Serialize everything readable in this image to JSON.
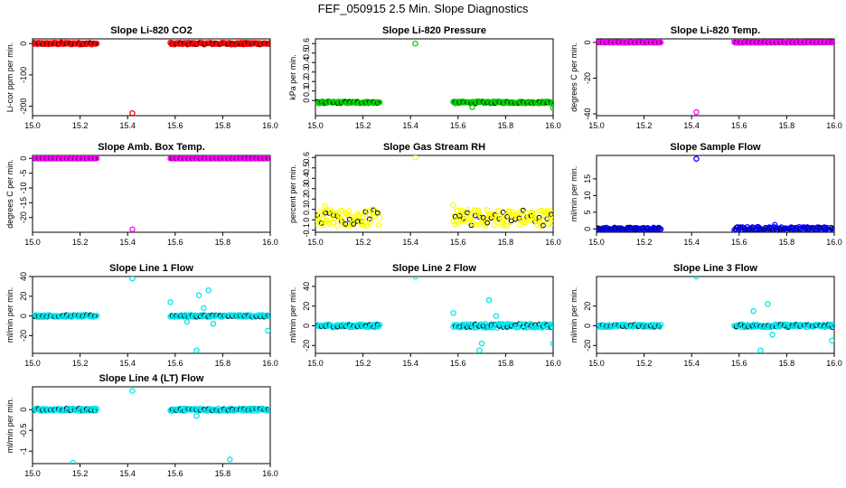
{
  "main_title": "FEF_050915  2.5 Min. Slope Diagnostics",
  "chart_data": [
    {
      "type": "scatter",
      "title": "Slope Li-820 CO2",
      "ylabel": "Li-cor ppm per min.",
      "xlim": [
        15.0,
        16.0
      ],
      "ylim": [
        -230,
        15
      ],
      "xticks": [
        "15.0",
        "15.2",
        "15.4",
        "15.6",
        "15.8",
        "16.0"
      ],
      "yticks": [
        0,
        -100,
        -200
      ],
      "color": "#ff0000",
      "series": [
        {
          "name": "seg1",
          "x_range": [
            15.0,
            15.27
          ],
          "base": 0,
          "spread": 3
        },
        {
          "name": "seg2",
          "x_range": [
            15.58,
            16.0
          ],
          "base": 0,
          "spread": 3
        }
      ],
      "outliers": [
        [
          15.42,
          -222
        ],
        [
          15.58,
          3
        ],
        [
          15.12,
          4
        ]
      ]
    },
    {
      "type": "scatter",
      "title": "Slope Li-820 Pressure",
      "ylabel": "kPa per min.",
      "xlim": [
        15.0,
        16.0
      ],
      "ylim": [
        -0.16,
        0.65
      ],
      "xticks": [
        "15.0",
        "15.2",
        "15.4",
        "15.6",
        "15.8",
        "16.0"
      ],
      "yticks": [
        0.0,
        0.1,
        0.2,
        0.3,
        0.4,
        0.5,
        0.6
      ],
      "color": "#00cc00",
      "series": [
        {
          "name": "seg1",
          "x_range": [
            15.0,
            15.27
          ],
          "base": -0.02,
          "spread": 0.01
        },
        {
          "name": "seg2",
          "x_range": [
            15.58,
            16.0
          ],
          "base": -0.02,
          "spread": 0.01
        }
      ],
      "outliers": [
        [
          15.42,
          0.6
        ],
        [
          15.66,
          -0.07
        ],
        [
          16.0,
          -0.08
        ]
      ]
    },
    {
      "type": "scatter",
      "title": "Slope Li-820 Temp.",
      "ylabel": "degrees C per min.",
      "xlim": [
        15.0,
        16.0
      ],
      "ylim": [
        -41,
        2
      ],
      "xticks": [
        "15.0",
        "15.2",
        "15.4",
        "15.6",
        "15.8",
        "16.0"
      ],
      "yticks": [
        0,
        -20,
        -40
      ],
      "color": "#ff00ff",
      "series": [
        {
          "name": "seg1",
          "x_range": [
            15.0,
            15.27
          ],
          "base": 0,
          "spread": 0.1
        },
        {
          "name": "seg2",
          "x_range": [
            15.58,
            16.0
          ],
          "base": 0,
          "spread": 0.1
        }
      ],
      "outliers": [
        [
          15.42,
          -39
        ],
        [
          15.58,
          1.5
        ]
      ]
    },
    {
      "type": "scatter",
      "title": "Slope Amb. Box Temp.",
      "ylabel": "degrees C per min.",
      "xlim": [
        15.0,
        16.0
      ],
      "ylim": [
        -25,
        1
      ],
      "xticks": [
        "15.0",
        "15.2",
        "15.4",
        "15.6",
        "15.8",
        "16.0"
      ],
      "yticks": [
        0,
        -5,
        -10,
        -15,
        -20
      ],
      "color": "#ff00ff",
      "series": [
        {
          "name": "seg1",
          "x_range": [
            15.0,
            15.27
          ],
          "base": 0,
          "spread": 0.05
        },
        {
          "name": "seg2",
          "x_range": [
            15.58,
            16.0
          ],
          "base": 0,
          "spread": 0.05
        }
      ],
      "outliers": [
        [
          15.42,
          -24
        ]
      ]
    },
    {
      "type": "scatter",
      "title": "Slope Gas Stream RH",
      "ylabel": "percent per min.",
      "xlim": [
        15.0,
        16.0
      ],
      "ylim": [
        -0.12,
        0.62
      ],
      "xticks": [
        "15.0",
        "15.2",
        "15.4",
        "15.6",
        "15.8",
        "16.0"
      ],
      "yticks": [
        -0.1,
        0.0,
        0.1,
        0.2,
        0.3,
        0.4,
        0.5,
        0.6
      ],
      "color": "#ffff00",
      "series": [
        {
          "name": "seg1",
          "x_range": [
            15.0,
            15.27
          ],
          "base": 0.02,
          "spread": 0.08
        },
        {
          "name": "seg2",
          "x_range": [
            15.58,
            16.0
          ],
          "base": 0.02,
          "spread": 0.08
        }
      ],
      "outliers": [
        [
          15.42,
          0.6
        ],
        [
          15.58,
          0.14
        ],
        [
          15.04,
          0.13
        ]
      ]
    },
    {
      "type": "scatter",
      "title": "Slope Sample Flow",
      "ylabel": "ml/min per min.",
      "xlim": [
        15.0,
        16.0
      ],
      "ylim": [
        -1,
        22
      ],
      "xticks": [
        "15.0",
        "15.2",
        "15.4",
        "15.6",
        "15.8",
        "16.0"
      ],
      "yticks": [
        0,
        5,
        10,
        15
      ],
      "color": "#0000ff",
      "series": [
        {
          "name": "seg1",
          "x_range": [
            15.0,
            15.27
          ],
          "base": 0,
          "spread": 0.4
        },
        {
          "name": "seg2",
          "x_range": [
            15.58,
            16.0
          ],
          "base": 0,
          "spread": 0.6
        }
      ],
      "outliers": [
        [
          15.42,
          21
        ],
        [
          15.66,
          -1
        ],
        [
          15.75,
          1.2
        ]
      ]
    },
    {
      "type": "scatter",
      "title": "Slope Line 1 Flow",
      "ylabel": "ml/min per min.",
      "xlim": [
        15.0,
        16.0
      ],
      "ylim": [
        -38,
        40
      ],
      "xticks": [
        "15.0",
        "15.2",
        "15.4",
        "15.6",
        "15.8",
        "16.0"
      ],
      "yticks": [
        -20,
        0,
        20,
        40
      ],
      "color": "#00e5ee",
      "series": [
        {
          "name": "seg1",
          "x_range": [
            15.0,
            15.27
          ],
          "base": 0,
          "spread": 1
        },
        {
          "name": "seg2",
          "x_range": [
            15.58,
            16.0
          ],
          "base": 0,
          "spread": 1
        }
      ],
      "outliers": [
        [
          15.42,
          38
        ],
        [
          15.69,
          -35
        ],
        [
          15.7,
          21
        ],
        [
          15.74,
          26
        ],
        [
          15.58,
          14
        ],
        [
          15.65,
          -6
        ],
        [
          15.72,
          8
        ],
        [
          15.76,
          -8
        ],
        [
          15.99,
          -15
        ]
      ]
    },
    {
      "type": "scatter",
      "title": "Slope Line 2 Flow",
      "ylabel": "ml/min per min.",
      "xlim": [
        15.0,
        16.0
      ],
      "ylim": [
        -28,
        50
      ],
      "xticks": [
        "15.0",
        "15.2",
        "15.4",
        "15.6",
        "15.8",
        "16.0"
      ],
      "yticks": [
        -20,
        0,
        20,
        40
      ],
      "color": "#00e5ee",
      "series": [
        {
          "name": "seg1",
          "x_range": [
            15.0,
            15.27
          ],
          "base": 0,
          "spread": 1.5
        },
        {
          "name": "seg2",
          "x_range": [
            15.58,
            16.0
          ],
          "base": 0,
          "spread": 2
        }
      ],
      "outliers": [
        [
          15.42,
          50
        ],
        [
          15.69,
          -25
        ],
        [
          15.73,
          26
        ],
        [
          15.58,
          13
        ],
        [
          15.7,
          -18
        ],
        [
          15.76,
          10
        ],
        [
          16.0,
          -18
        ]
      ]
    },
    {
      "type": "scatter",
      "title": "Slope Line 3 Flow",
      "ylabel": "ml/min per min.",
      "xlim": [
        15.0,
        16.0
      ],
      "ylim": [
        -28,
        50
      ],
      "xticks": [
        "15.0",
        "15.2",
        "15.4",
        "15.6",
        "15.8",
        "16.0"
      ],
      "yticks": [
        -20,
        0,
        20
      ],
      "color": "#00e5ee",
      "series": [
        {
          "name": "seg1",
          "x_range": [
            15.0,
            15.27
          ],
          "base": 0,
          "spread": 1.2
        },
        {
          "name": "seg2",
          "x_range": [
            15.58,
            16.0
          ],
          "base": 0,
          "spread": 1.5
        }
      ],
      "outliers": [
        [
          15.42,
          50
        ],
        [
          15.69,
          -25
        ],
        [
          15.72,
          22
        ],
        [
          15.66,
          15
        ],
        [
          15.99,
          -15
        ],
        [
          15.74,
          -9
        ]
      ]
    },
    {
      "type": "scatter",
      "title": "Slope Line 4 (LT) Flow",
      "ylabel": "ml/min per min.",
      "xlim": [
        15.0,
        16.0
      ],
      "ylim": [
        -1.3,
        0.55
      ],
      "xticks": [
        "15.0",
        "15.2",
        "15.4",
        "15.6",
        "15.8",
        "16.0"
      ],
      "yticks": [
        -1.0,
        -0.5,
        0.0
      ],
      "color": "#00e5ee",
      "series": [
        {
          "name": "seg1",
          "x_range": [
            15.0,
            15.27
          ],
          "base": 0,
          "spread": 0.03
        },
        {
          "name": "seg2",
          "x_range": [
            15.58,
            16.0
          ],
          "base": 0,
          "spread": 0.03
        }
      ],
      "outliers": [
        [
          15.42,
          0.45
        ],
        [
          15.17,
          -1.28
        ],
        [
          15.83,
          -1.2
        ],
        [
          15.69,
          -0.15
        ]
      ]
    }
  ]
}
